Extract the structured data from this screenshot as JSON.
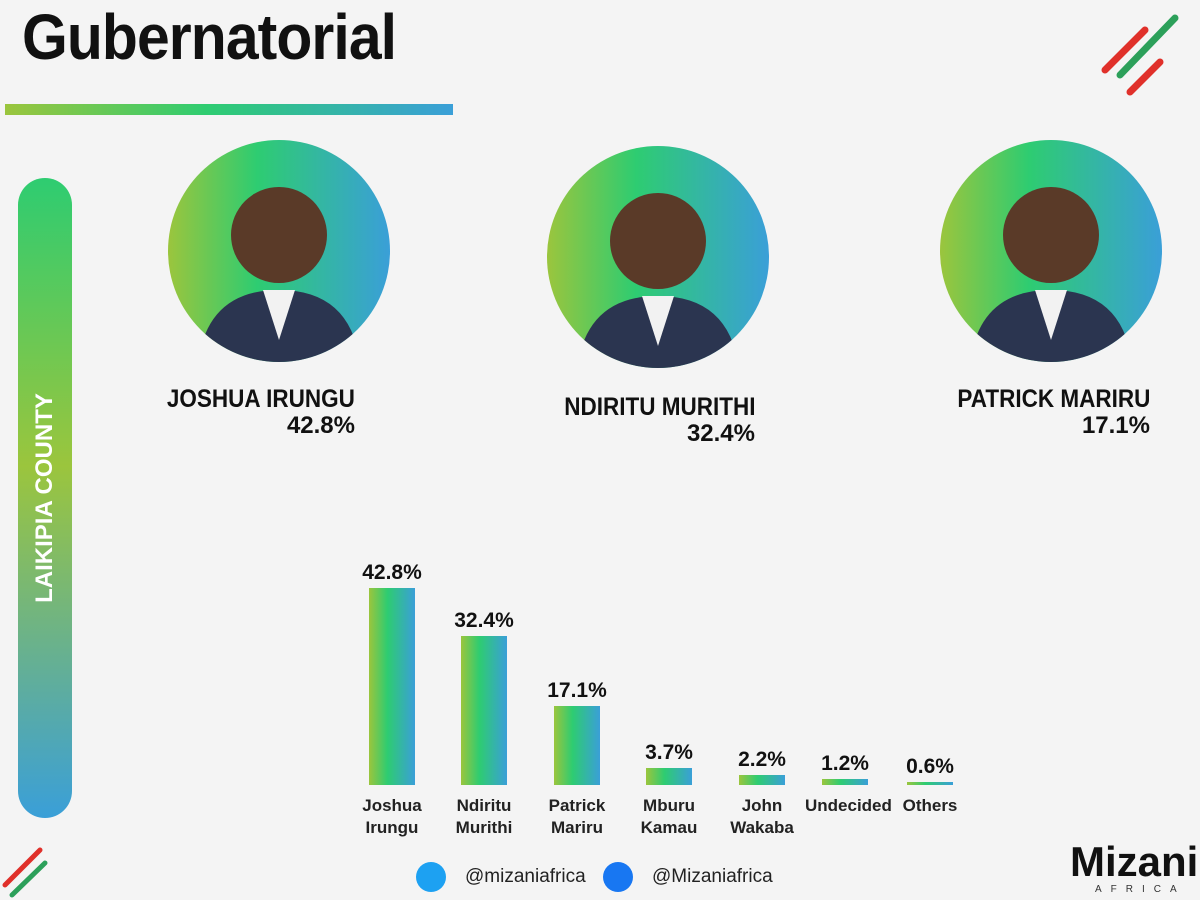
{
  "header": {
    "title": "Gubernatorial"
  },
  "sidebar": {
    "label": "LAIKIPIA COUNTY"
  },
  "candidates": [
    {
      "name": "JOSHUA IRUNGU",
      "share": "42.8%"
    },
    {
      "name": "NDIRITU MURITHI",
      "share": "32.4%"
    },
    {
      "name": "PATRICK MARIRU",
      "share": "17.1%"
    }
  ],
  "chart_data": {
    "type": "bar",
    "categories": [
      "Joshua Irungu",
      "Ndiritu Murithi",
      "Patrick Mariru",
      "Mburu Kamau",
      "John Wakaba",
      "Undecided",
      "Others"
    ],
    "values": [
      42.8,
      32.4,
      17.1,
      3.7,
      2.2,
      1.2,
      0.6
    ],
    "value_labels": [
      "42.8%",
      "32.4%",
      "17.1%",
      "3.7%",
      "2.2%",
      "1.2%",
      "0.6%"
    ]
  },
  "footer": {
    "twitter": "@mizaniafrica",
    "facebook": "@Mizaniafrica"
  },
  "logo": {
    "name": "Mizani",
    "tagline": "AFRICA"
  }
}
